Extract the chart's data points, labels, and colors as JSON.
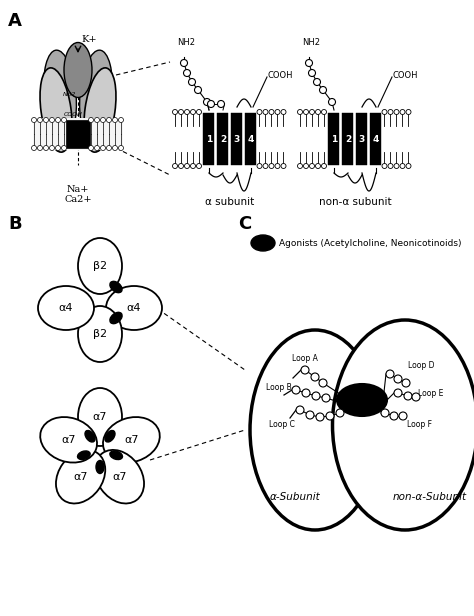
{
  "panel_A_label": "A",
  "panel_B_label": "B",
  "panel_C_label": "C",
  "k_plus_label": "K+",
  "na_label": "Na+",
  "ca_label": "Ca2+",
  "alpha_subunit_label": "α subunit",
  "non_alpha_subunit_label": "non-α subunit",
  "nh2_label": "NH2",
  "cooh_label": "COOH",
  "tm_labels": [
    "1",
    "2",
    "3",
    "4"
  ],
  "beta2_label": "β2",
  "alpha4_label": "α4",
  "alpha7_label": "α7",
  "agonist_label": "Agonists (Acetylcholine, Neonicotinoids)",
  "loop_labels": [
    "Loop A",
    "Loop B",
    "Loop C",
    "Loop D",
    "Loop E",
    "Loop F"
  ],
  "alpha_subunit_bottom": "α-Subunit",
  "non_alpha_subunit_bottom": "non-α-Subunit",
  "bg_color": "#ffffff"
}
